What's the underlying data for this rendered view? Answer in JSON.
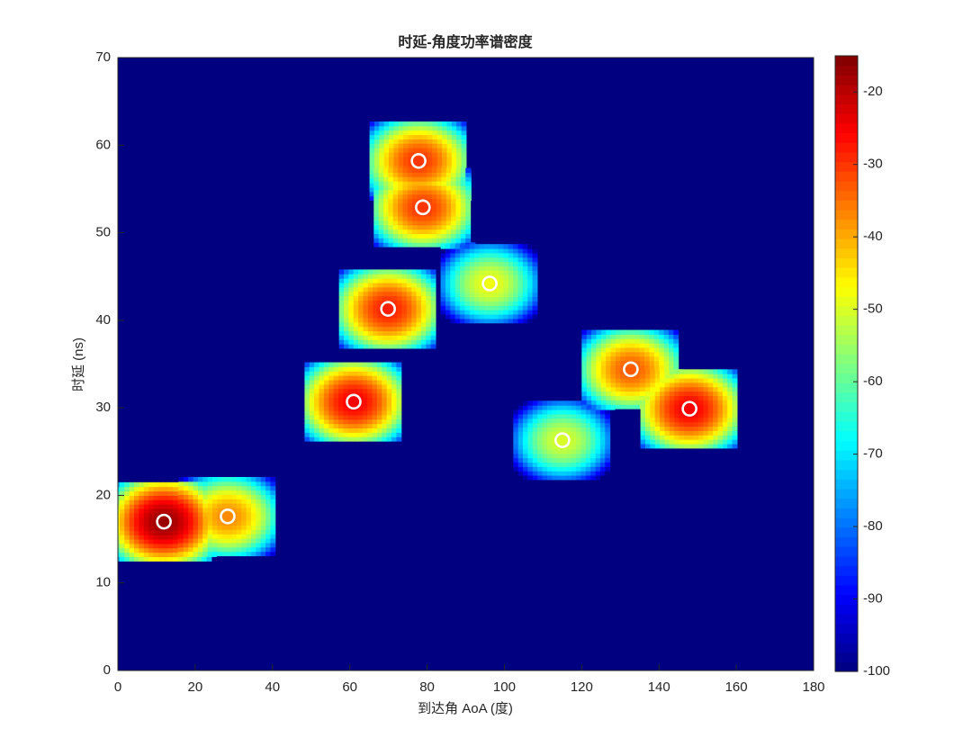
{
  "chart_data": {
    "type": "psd-heatmap",
    "title": "时延-角度功率谱密度",
    "x_label": "到达角 AoA (度)",
    "y_label": "时延 (ns)",
    "xlim": [
      0,
      180
    ],
    "xticks": [
      0,
      20,
      40,
      60,
      80,
      100,
      120,
      140,
      160,
      180
    ],
    "ylim": [
      0,
      70
    ],
    "yticks": [
      0,
      10,
      20,
      30,
      40,
      50,
      60,
      70
    ],
    "clim": [
      -100,
      -15
    ],
    "cticks": [
      -100,
      -90,
      -80,
      -70,
      -60,
      -50,
      -40,
      -30,
      -20
    ],
    "colormap": "jet",
    "marker_color": "#ffffff",
    "paths": {
      "x": [
        11.9,
        28.4,
        61.0,
        69.9,
        77.8,
        78.9,
        96.2,
        115.0,
        132.7,
        147.9
      ],
      "y": [
        17.0,
        17.6,
        30.7,
        41.3,
        58.2,
        52.9,
        44.2,
        26.3,
        34.4,
        29.9
      ],
      "power": [
        -17,
        -37,
        -25,
        -28,
        -30,
        -30,
        -48,
        -50,
        -33,
        -25
      ]
    }
  }
}
